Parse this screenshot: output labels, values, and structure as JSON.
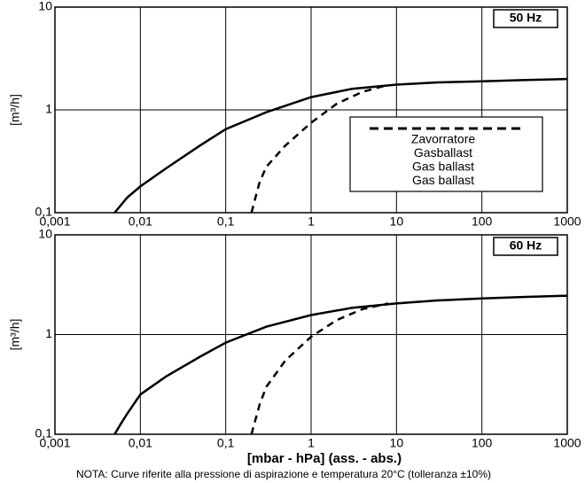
{
  "chart_data": [
    {
      "type": "line",
      "annotation": "50 Hz",
      "ylabel": "[m³/h]",
      "xscale": "log",
      "yscale": "log",
      "grid": true,
      "xlim": [
        0.001,
        1000
      ],
      "ylim": [
        0.1,
        10
      ],
      "xticks": [
        {
          "value": 0.001,
          "label": "0,001"
        },
        {
          "value": 0.01,
          "label": "0,01"
        },
        {
          "value": 0.1,
          "label": "0,1"
        },
        1,
        10,
        100,
        1000
      ],
      "yticks": [
        {
          "value": 0.1,
          "label": "0,1"
        },
        1,
        10
      ],
      "legend": {
        "labels": [
          "Zavorratore",
          "Gasballast",
          "Gas ballast",
          "Gas ballast"
        ]
      },
      "series": [
        {
          "color": "#000000",
          "dash": false,
          "x": [
            0.005,
            0.006,
            0.007,
            0.01,
            0.02,
            0.05,
            0.1,
            0.3,
            1,
            3,
            10,
            30,
            100,
            300,
            1000
          ],
          "values": [
            0.1,
            0.12,
            0.14,
            0.18,
            0.27,
            0.45,
            0.65,
            0.95,
            1.33,
            1.6,
            1.76,
            1.85,
            1.9,
            1.95,
            2.0
          ]
        },
        {
          "color": "#000000",
          "dash": true,
          "x": [
            0.2,
            0.25,
            0.3,
            0.5,
            1,
            2,
            4,
            8
          ],
          "values": [
            0.1,
            0.2,
            0.28,
            0.45,
            0.75,
            1.15,
            1.5,
            1.75
          ]
        }
      ]
    },
    {
      "type": "line",
      "annotation": "60 Hz",
      "ylabel": "[m³/h]",
      "xlabel": "[mbar - hPa] (ass. - abs.)",
      "xscale": "log",
      "yscale": "log",
      "grid": true,
      "xlim": [
        0.001,
        1000
      ],
      "ylim": [
        0.1,
        10
      ],
      "xticks": [
        {
          "value": 0.001,
          "label": "0,001"
        },
        {
          "value": 0.01,
          "label": "0,01"
        },
        {
          "value": 0.1,
          "label": "0,1"
        },
        1,
        10,
        100,
        1000
      ],
      "yticks": [
        {
          "value": 0.1,
          "label": "0,1"
        },
        1,
        10
      ],
      "series": [
        {
          "color": "#000000",
          "dash": false,
          "x": [
            0.005,
            0.006,
            0.007,
            0.01,
            0.02,
            0.05,
            0.1,
            0.3,
            1,
            3,
            10,
            30,
            100,
            300,
            1000
          ],
          "values": [
            0.1,
            0.13,
            0.16,
            0.25,
            0.38,
            0.6,
            0.83,
            1.2,
            1.57,
            1.85,
            2.05,
            2.2,
            2.3,
            2.38,
            2.45
          ]
        },
        {
          "color": "#000000",
          "dash": true,
          "x": [
            0.2,
            0.25,
            0.3,
            0.5,
            1,
            2,
            4,
            8
          ],
          "values": [
            0.1,
            0.2,
            0.3,
            0.55,
            0.95,
            1.4,
            1.8,
            2.05
          ]
        }
      ]
    }
  ],
  "note": "NOTA:  Curve riferite alla pressione di aspirazione e temperatura 20°C (tolleranza ±10%)"
}
